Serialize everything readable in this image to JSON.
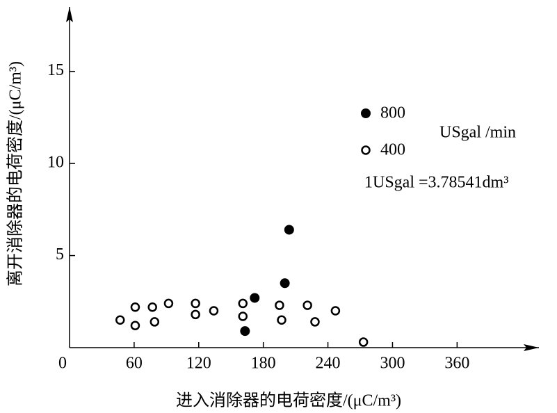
{
  "chart_data": {
    "type": "scatter",
    "xlabel": "进入消除器的电荷密度/(μC/m³)",
    "ylabel": "离开消除器的电荷密度/(μC/m³)",
    "annotations": [
      "USgal /min",
      "1USgal =3.78541dm³"
    ],
    "xlim": [
      0,
      436
    ],
    "ylim": [
      0,
      18.5
    ],
    "xticks": [
      0,
      60,
      120,
      180,
      240,
      300,
      360
    ],
    "yticks": [
      5,
      10,
      15
    ],
    "series": [
      {
        "name": "800",
        "color": "#000000",
        "filled": true,
        "x": [
          163,
          172,
          200,
          204
        ],
        "values": [
          0.9,
          2.7,
          3.5,
          6.4
        ]
      },
      {
        "name": "400",
        "color": "#000000",
        "filled": false,
        "x": [
          47,
          61,
          61,
          77,
          79,
          92,
          117,
          117,
          134,
          161,
          161,
          195,
          197,
          221,
          228,
          247,
          273
        ],
        "values": [
          1.5,
          1.2,
          2.2,
          2.2,
          1.4,
          2.4,
          2.4,
          1.8,
          2.0,
          2.4,
          1.7,
          2.3,
          1.5,
          2.3,
          1.4,
          2.0,
          0.3
        ]
      }
    ]
  }
}
